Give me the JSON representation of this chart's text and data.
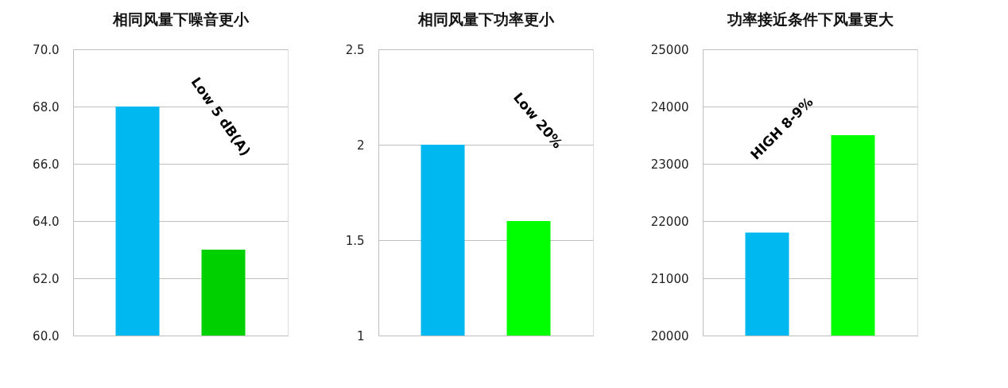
{
  "chart_data": [
    {
      "type": "bar",
      "title": "相同风量下噪音更小",
      "categories": [
        null,
        null
      ],
      "values": [
        68,
        63
      ],
      "colors": [
        "#00b8f0",
        "#00d000"
      ],
      "ylim": [
        60,
        70
      ],
      "yticks": [
        {
          "value": 60,
          "label": "60.0"
        },
        {
          "value": 62,
          "label": "62.0"
        },
        {
          "value": 64,
          "label": "64.0"
        },
        {
          "value": 66,
          "label": "66.0"
        },
        {
          "value": 68,
          "label": "68.0"
        },
        {
          "value": 70,
          "label": "70.0"
        }
      ],
      "grid": "y",
      "annotations": [
        "Low 5 dB(A)"
      ]
    },
    {
      "type": "bar",
      "title": "相同风量下功率更小",
      "categories": [
        null,
        null
      ],
      "values": [
        2,
        1.6
      ],
      "colors": [
        "#00b8f0",
        "#00ff00"
      ],
      "ylim": [
        1,
        2.5
      ],
      "yticks": [
        1,
        1.5,
        2,
        2.5
      ],
      "grid": "y",
      "annotations": [
        "Low 20%"
      ]
    },
    {
      "type": "bar",
      "title": "功率接近条件下风量更大",
      "categories": [
        null,
        null
      ],
      "values": [
        21800,
        23500
      ],
      "colors": [
        "#00b8f0",
        "#00ff00"
      ],
      "ylim": [
        20000,
        25000
      ],
      "yticks": [
        20000,
        21000,
        22000,
        23000,
        24000,
        25000
      ],
      "grid": "y",
      "annotations": [
        "HIGH  8-9%"
      ]
    }
  ]
}
